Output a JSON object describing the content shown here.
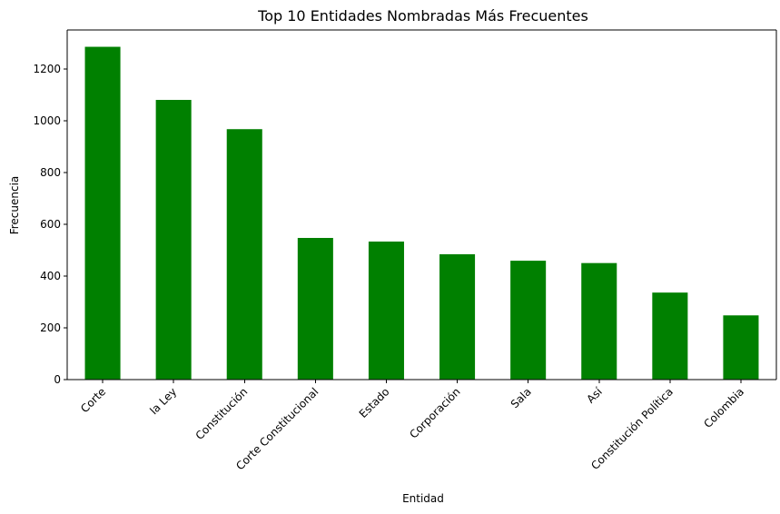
{
  "chart_data": {
    "type": "bar",
    "title": "Top 10 Entidades Nombradas Más Frecuentes",
    "xlabel": "Entidad",
    "ylabel": "Frecuencia",
    "categories": [
      "Corte",
      "la Ley",
      "Constitución",
      "Corte Constitucional",
      "Estado",
      "Corporación",
      "Sala",
      "Así",
      "Constitución Política",
      "Colombia"
    ],
    "values": [
      1285,
      1080,
      967,
      547,
      533,
      484,
      459,
      450,
      336,
      248
    ],
    "ylim": [
      0,
      1350
    ],
    "yticks": [
      0,
      200,
      400,
      600,
      800,
      1000,
      1200
    ],
    "bar_color": "#008000",
    "grid": false,
    "legend": "none"
  }
}
